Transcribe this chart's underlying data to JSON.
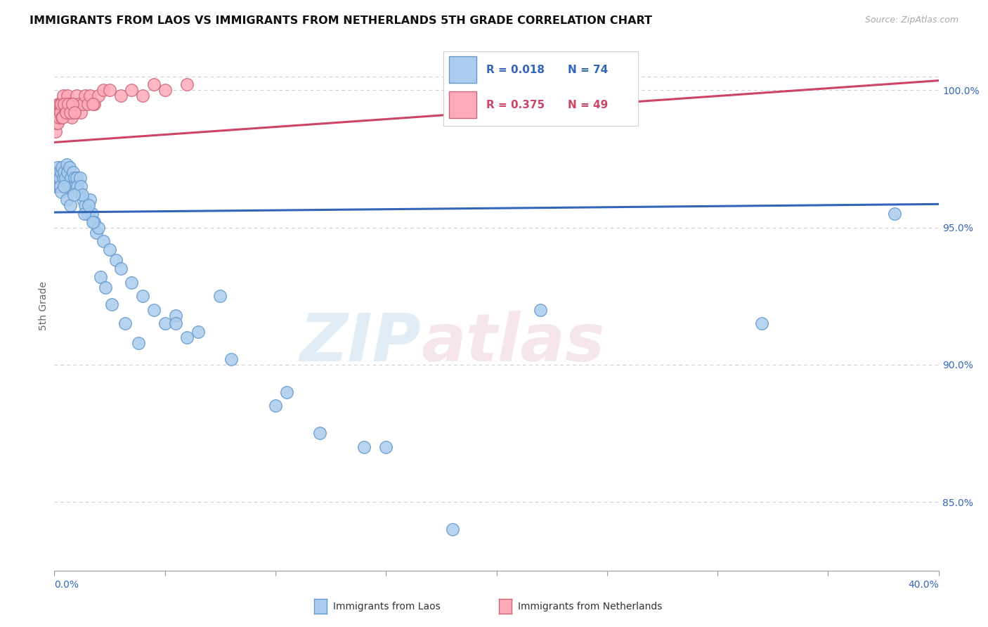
{
  "title": "IMMIGRANTS FROM LAOS VS IMMIGRANTS FROM NETHERLANDS 5TH GRADE CORRELATION CHART",
  "source": "Source: ZipAtlas.com",
  "ylabel": "5th Grade",
  "xlim": [
    0.0,
    40.0
  ],
  "ylim": [
    82.5,
    101.8
  ],
  "ytick_vals": [
    85.0,
    90.0,
    95.0,
    100.0
  ],
  "ytick_labels": [
    "85.0%",
    "90.0%",
    "95.0%",
    "100.0%"
  ],
  "top_dotted_y": 100.5,
  "R_laos": 0.018,
  "N_laos": 74,
  "R_netherlands": 0.375,
  "N_netherlands": 49,
  "color_laos_fill": "#aaccee",
  "color_laos_edge": "#6699cc",
  "color_laos_line": "#3366bb",
  "color_neth_fill": "#ffaabb",
  "color_neth_edge": "#cc6677",
  "color_neth_line": "#cc4466",
  "color_blue_text": "#3366bb",
  "color_pink_text": "#cc4466",
  "grid_color": "#cccccc",
  "background_color": "#ffffff",
  "laos_trend_x0": 0.0,
  "laos_trend_x1": 40.0,
  "laos_trend_y0": 95.55,
  "laos_trend_y1": 95.85,
  "neth_trend_x0": 0.0,
  "neth_trend_x1": 40.0,
  "neth_trend_y0": 98.1,
  "neth_trend_y1": 100.35,
  "laos_x": [
    0.05,
    0.08,
    0.1,
    0.12,
    0.15,
    0.18,
    0.2,
    0.22,
    0.25,
    0.28,
    0.3,
    0.32,
    0.35,
    0.4,
    0.45,
    0.5,
    0.55,
    0.6,
    0.65,
    0.7,
    0.75,
    0.8,
    0.85,
    0.9,
    0.95,
    1.0,
    1.05,
    1.1,
    1.15,
    1.2,
    1.3,
    1.4,
    1.5,
    1.6,
    1.7,
    1.8,
    1.9,
    2.0,
    2.2,
    2.5,
    2.8,
    3.0,
    3.5,
    4.0,
    4.5,
    5.0,
    5.5,
    6.5,
    7.5,
    10.0,
    12.0,
    15.0,
    3.2,
    2.1,
    1.25,
    0.42,
    0.55,
    0.72,
    0.88,
    1.35,
    1.55,
    1.75,
    2.3,
    2.6,
    3.8,
    5.5,
    8.0,
    10.5,
    14.0,
    18.0,
    22.0,
    32.0,
    38.0,
    6.0
  ],
  "laos_y": [
    96.5,
    96.8,
    97.0,
    96.5,
    97.2,
    96.8,
    97.0,
    96.5,
    96.8,
    96.5,
    97.0,
    96.3,
    97.2,
    96.8,
    97.0,
    96.8,
    97.3,
    97.0,
    96.5,
    97.2,
    96.8,
    96.5,
    97.0,
    96.8,
    96.5,
    96.8,
    96.5,
    96.3,
    96.8,
    96.5,
    96.0,
    95.8,
    95.5,
    96.0,
    95.5,
    95.2,
    94.8,
    95.0,
    94.5,
    94.2,
    93.8,
    93.5,
    93.0,
    92.5,
    92.0,
    91.5,
    91.8,
    91.2,
    92.5,
    88.5,
    87.5,
    87.0,
    91.5,
    93.2,
    96.2,
    96.5,
    96.0,
    95.8,
    96.2,
    95.5,
    95.8,
    95.2,
    92.8,
    92.2,
    90.8,
    91.5,
    90.2,
    89.0,
    87.0,
    84.0,
    92.0,
    91.5,
    95.5,
    91.0
  ],
  "neth_x": [
    0.05,
    0.08,
    0.1,
    0.12,
    0.15,
    0.18,
    0.2,
    0.22,
    0.25,
    0.28,
    0.3,
    0.35,
    0.4,
    0.45,
    0.5,
    0.55,
    0.6,
    0.65,
    0.7,
    0.75,
    0.8,
    0.85,
    0.9,
    0.95,
    1.0,
    1.1,
    1.2,
    1.3,
    1.4,
    1.5,
    1.6,
    1.8,
    2.0,
    2.2,
    2.5,
    3.0,
    3.5,
    4.0,
    4.5,
    5.0,
    0.38,
    0.42,
    0.52,
    0.62,
    0.72,
    0.82,
    0.92,
    1.75,
    6.0
  ],
  "neth_y": [
    98.5,
    98.8,
    99.0,
    99.2,
    98.8,
    99.5,
    99.2,
    99.0,
    99.5,
    99.2,
    99.5,
    99.0,
    99.8,
    99.5,
    99.2,
    99.5,
    99.8,
    99.5,
    99.2,
    99.5,
    99.0,
    99.5,
    99.2,
    99.5,
    99.8,
    99.5,
    99.2,
    99.5,
    99.8,
    99.5,
    99.8,
    99.5,
    99.8,
    100.0,
    100.0,
    99.8,
    100.0,
    99.8,
    100.2,
    100.0,
    99.0,
    99.5,
    99.2,
    99.5,
    99.2,
    99.5,
    99.2,
    99.5,
    100.2
  ]
}
